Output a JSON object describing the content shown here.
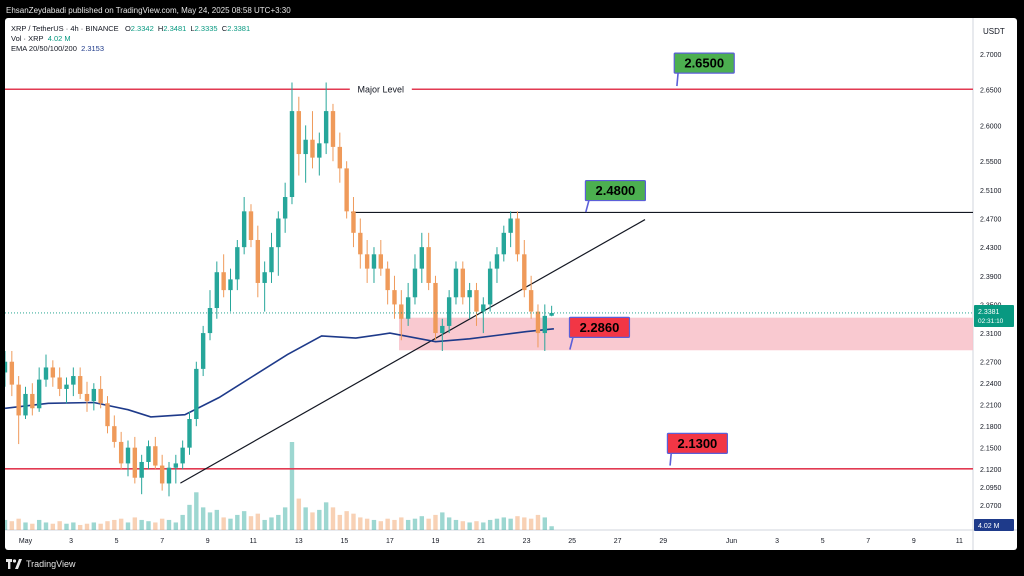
{
  "header": {
    "published_text": "EhsanZeydabadi published on TradingView.com, May 24, 2025 08:58 UTC+3:30"
  },
  "legend": {
    "symbol": "XRP / TetherUS · 4h · BINANCE",
    "o_label": "O",
    "o_value": "2.3342",
    "h_label": "H",
    "h_value": "2.3481",
    "l_label": "L",
    "l_value": "2.3335",
    "c_label": "C",
    "c_value": "2.3381",
    "vol_label": "Vol · XRP",
    "vol_value": "4.02 M",
    "ema_label": "EMA 20/50/100/200",
    "ema_value": "2.3153"
  },
  "footer": {
    "brand": "TradingView"
  },
  "colors": {
    "up": "#26a69a",
    "down": "#ef9a5a",
    "ema": "#1e3a8a",
    "level_line": "#e23a52",
    "zone_fill": "#f8c0c8",
    "green_label": "#4caf50",
    "red_label": "#f23645"
  },
  "chart_data": {
    "type": "candlestick",
    "symbol": "XRP/USDT",
    "timeframe": "4h",
    "currency_label": "USDT",
    "ylim": [
      2.035,
      2.75
    ],
    "y_ticks": [
      "2.7000",
      "2.6500",
      "2.6000",
      "2.5500",
      "2.5100",
      "2.4700",
      "2.4300",
      "2.3900",
      "2.3500",
      "2.3100",
      "2.2700",
      "2.2400",
      "2.2100",
      "2.1800",
      "2.1500",
      "2.1200",
      "2.0950",
      "2.0700"
    ],
    "x_ticks": [
      {
        "label": "May",
        "day": 1
      },
      {
        "label": "3",
        "day": 3
      },
      {
        "label": "5",
        "day": 5
      },
      {
        "label": "7",
        "day": 7
      },
      {
        "label": "9",
        "day": 9
      },
      {
        "label": "11",
        "day": 11
      },
      {
        "label": "13",
        "day": 13
      },
      {
        "label": "15",
        "day": 15
      },
      {
        "label": "17",
        "day": 17
      },
      {
        "label": "19",
        "day": 19
      },
      {
        "label": "21",
        "day": 21
      },
      {
        "label": "23",
        "day": 23
      },
      {
        "label": "25",
        "day": 25
      },
      {
        "label": "27",
        "day": 27
      },
      {
        "label": "29",
        "day": 29
      },
      {
        "label": "Jun",
        "day": 32
      },
      {
        "label": "3",
        "day": 34
      },
      {
        "label": "5",
        "day": 36
      },
      {
        "label": "7",
        "day": 38
      },
      {
        "label": "9",
        "day": 40
      },
      {
        "label": "11",
        "day": 42
      }
    ],
    "xlim_days": [
      0.1,
      42.6
    ],
    "current_price": "2.3381",
    "countdown": "02:31:10",
    "volume_badge": "4.02 M",
    "levels": [
      {
        "name": "major-level",
        "price": 2.6505,
        "label": "Major Level",
        "type": "red-line"
      },
      {
        "name": "resistance",
        "price": 2.4785,
        "day_start": 15.3,
        "type": "black-line"
      },
      {
        "name": "support-low",
        "price": 2.1205,
        "type": "red-line"
      }
    ],
    "zone": {
      "day_start": 17.4,
      "day_end": 42.6,
      "price_low": 2.286,
      "price_high": 2.3315
    },
    "trendline": {
      "day_start": 7.8,
      "price_start": 2.1005,
      "day_end": 28.2,
      "price_end": 2.4685
    },
    "callouts": [
      {
        "label": "2.6500",
        "color": "green",
        "day": 30.8,
        "price": 2.687,
        "arrow_day": 29.6,
        "arrow_price": 2.655
      },
      {
        "label": "2.4800",
        "color": "green",
        "day": 26.9,
        "price": 2.509,
        "arrow_day": 25.6,
        "arrow_price": 2.479
      },
      {
        "label": "2.2860",
        "color": "red",
        "day": 26.2,
        "price": 2.318,
        "arrow_day": 24.9,
        "arrow_price": 2.287
      },
      {
        "label": "2.1300",
        "color": "red",
        "day": 30.5,
        "price": 2.156,
        "arrow_day": 29.3,
        "arrow_price": 2.125
      }
    ],
    "ema_path": [
      [
        0.1,
        2.205
      ],
      [
        2,
        2.212
      ],
      [
        4,
        2.213
      ],
      [
        5.5,
        2.203
      ],
      [
        6.5,
        2.193
      ],
      [
        8,
        2.196
      ],
      [
        9.5,
        2.22
      ],
      [
        11,
        2.25
      ],
      [
        12.5,
        2.28
      ],
      [
        14,
        2.306
      ],
      [
        15.5,
        2.303
      ],
      [
        17,
        2.31
      ],
      [
        19,
        2.298
      ],
      [
        20.5,
        2.302
      ],
      [
        22,
        2.308
      ],
      [
        23,
        2.312
      ],
      [
        24.2,
        2.316
      ]
    ],
    "candles": [
      [
        0.1,
        2.255,
        2.285,
        2.235,
        2.27
      ],
      [
        0.4,
        2.27,
        2.285,
        2.222,
        2.238
      ],
      [
        0.7,
        2.238,
        2.25,
        2.155,
        2.195
      ],
      [
        1.0,
        2.195,
        2.235,
        2.19,
        2.225
      ],
      [
        1.3,
        2.225,
        2.24,
        2.195,
        2.205
      ],
      [
        1.6,
        2.205,
        2.262,
        2.2,
        2.245
      ],
      [
        1.9,
        2.245,
        2.28,
        2.235,
        2.262
      ],
      [
        2.2,
        2.262,
        2.272,
        2.235,
        2.248
      ],
      [
        2.5,
        2.248,
        2.262,
        2.222,
        2.232
      ],
      [
        2.8,
        2.232,
        2.248,
        2.212,
        2.238
      ],
      [
        3.1,
        2.238,
        2.262,
        2.222,
        2.25
      ],
      [
        3.4,
        2.25,
        2.262,
        2.218,
        2.225
      ],
      [
        3.7,
        2.225,
        2.242,
        2.2,
        2.215
      ],
      [
        4.0,
        2.215,
        2.24,
        2.202,
        2.232
      ],
      [
        4.3,
        2.232,
        2.25,
        2.205,
        2.212
      ],
      [
        4.6,
        2.212,
        2.222,
        2.17,
        2.18
      ],
      [
        4.9,
        2.18,
        2.195,
        2.15,
        2.158
      ],
      [
        5.2,
        2.158,
        2.172,
        2.12,
        2.128
      ],
      [
        5.5,
        2.128,
        2.16,
        2.11,
        2.15
      ],
      [
        5.8,
        2.15,
        2.165,
        2.1,
        2.108
      ],
      [
        6.1,
        2.108,
        2.14,
        2.085,
        2.13
      ],
      [
        6.4,
        2.13,
        2.16,
        2.12,
        2.152
      ],
      [
        6.7,
        2.152,
        2.165,
        2.12,
        2.125
      ],
      [
        7.0,
        2.125,
        2.14,
        2.09,
        2.1
      ],
      [
        7.3,
        2.1,
        2.13,
        2.082,
        2.122
      ],
      [
        7.6,
        2.122,
        2.14,
        2.1,
        2.128
      ],
      [
        7.9,
        2.128,
        2.16,
        2.12,
        2.15
      ],
      [
        8.2,
        2.15,
        2.2,
        2.14,
        2.19
      ],
      [
        8.5,
        2.19,
        2.27,
        2.18,
        2.26
      ],
      [
        8.8,
        2.26,
        2.32,
        2.25,
        2.31
      ],
      [
        9.1,
        2.31,
        2.37,
        2.3,
        2.345
      ],
      [
        9.4,
        2.345,
        2.41,
        2.33,
        2.395
      ],
      [
        9.7,
        2.395,
        2.42,
        2.36,
        2.37
      ],
      [
        10.0,
        2.37,
        2.4,
        2.34,
        2.385
      ],
      [
        10.3,
        2.385,
        2.44,
        2.37,
        2.43
      ],
      [
        10.6,
        2.43,
        2.5,
        2.42,
        2.48
      ],
      [
        10.9,
        2.48,
        2.49,
        2.43,
        2.44
      ],
      [
        11.2,
        2.44,
        2.46,
        2.36,
        2.38
      ],
      [
        11.5,
        2.38,
        2.41,
        2.34,
        2.395
      ],
      [
        11.8,
        2.395,
        2.45,
        2.38,
        2.43
      ],
      [
        12.1,
        2.43,
        2.48,
        2.39,
        2.47
      ],
      [
        12.4,
        2.47,
        2.52,
        2.45,
        2.5
      ],
      [
        12.7,
        2.5,
        2.66,
        2.49,
        2.62
      ],
      [
        13.0,
        2.62,
        2.64,
        2.53,
        2.56
      ],
      [
        13.3,
        2.56,
        2.6,
        2.52,
        2.58
      ],
      [
        13.6,
        2.58,
        2.62,
        2.54,
        2.555
      ],
      [
        13.9,
        2.555,
        2.59,
        2.53,
        2.575
      ],
      [
        14.2,
        2.575,
        2.66,
        2.56,
        2.62
      ],
      [
        14.5,
        2.62,
        2.63,
        2.55,
        2.57
      ],
      [
        14.8,
        2.57,
        2.59,
        2.52,
        2.54
      ],
      [
        15.1,
        2.54,
        2.55,
        2.47,
        2.48
      ],
      [
        15.4,
        2.48,
        2.5,
        2.43,
        2.45
      ],
      [
        15.7,
        2.45,
        2.47,
        2.4,
        2.42
      ],
      [
        16.0,
        2.42,
        2.44,
        2.38,
        2.4
      ],
      [
        16.3,
        2.4,
        2.43,
        2.38,
        2.42
      ],
      [
        16.6,
        2.42,
        2.44,
        2.39,
        2.4
      ],
      [
        16.9,
        2.4,
        2.41,
        2.35,
        2.37
      ],
      [
        17.2,
        2.37,
        2.39,
        2.33,
        2.35
      ],
      [
        17.5,
        2.35,
        2.37,
        2.3,
        2.33
      ],
      [
        17.8,
        2.33,
        2.38,
        2.32,
        2.36
      ],
      [
        18.1,
        2.36,
        2.42,
        2.35,
        2.4
      ],
      [
        18.4,
        2.4,
        2.45,
        2.38,
        2.43
      ],
      [
        18.7,
        2.43,
        2.45,
        2.37,
        2.38
      ],
      [
        19.0,
        2.38,
        2.39,
        2.3,
        2.31
      ],
      [
        19.3,
        2.31,
        2.33,
        2.285,
        2.32
      ],
      [
        19.6,
        2.32,
        2.37,
        2.31,
        2.36
      ],
      [
        19.9,
        2.36,
        2.41,
        2.35,
        2.4
      ],
      [
        20.2,
        2.4,
        2.41,
        2.35,
        2.36
      ],
      [
        20.5,
        2.36,
        2.38,
        2.33,
        2.37
      ],
      [
        20.8,
        2.37,
        2.38,
        2.32,
        2.34
      ],
      [
        21.1,
        2.34,
        2.36,
        2.31,
        2.35
      ],
      [
        21.4,
        2.35,
        2.41,
        2.34,
        2.4
      ],
      [
        21.7,
        2.4,
        2.43,
        2.38,
        2.42
      ],
      [
        22.0,
        2.42,
        2.46,
        2.41,
        2.45
      ],
      [
        22.3,
        2.45,
        2.48,
        2.43,
        2.47
      ],
      [
        22.6,
        2.47,
        2.48,
        2.41,
        2.42
      ],
      [
        22.9,
        2.42,
        2.44,
        2.36,
        2.37
      ],
      [
        23.2,
        2.37,
        2.39,
        2.33,
        2.34
      ],
      [
        23.5,
        2.34,
        2.35,
        2.29,
        2.31
      ],
      [
        23.8,
        2.31,
        2.35,
        2.285,
        2.334
      ],
      [
        24.1,
        2.3342,
        2.3481,
        2.3335,
        2.3381
      ]
    ],
    "volume": [
      [
        0.1,
        8
      ],
      [
        0.4,
        7
      ],
      [
        0.7,
        9
      ],
      [
        1.0,
        6
      ],
      [
        1.3,
        5
      ],
      [
        1.6,
        8
      ],
      [
        1.9,
        6
      ],
      [
        2.2,
        5
      ],
      [
        2.5,
        7
      ],
      [
        2.8,
        5
      ],
      [
        3.1,
        6
      ],
      [
        3.4,
        4
      ],
      [
        3.7,
        5
      ],
      [
        4.0,
        6
      ],
      [
        4.3,
        5
      ],
      [
        4.6,
        7
      ],
      [
        4.9,
        8
      ],
      [
        5.2,
        9
      ],
      [
        5.5,
        6
      ],
      [
        5.8,
        10
      ],
      [
        6.1,
        8
      ],
      [
        6.4,
        7
      ],
      [
        6.7,
        6
      ],
      [
        7.0,
        9
      ],
      [
        7.3,
        8
      ],
      [
        7.6,
        6
      ],
      [
        7.9,
        12
      ],
      [
        8.2,
        20
      ],
      [
        8.5,
        30
      ],
      [
        8.8,
        18
      ],
      [
        9.1,
        14
      ],
      [
        9.4,
        16
      ],
      [
        9.7,
        10
      ],
      [
        10.0,
        9
      ],
      [
        10.3,
        12
      ],
      [
        10.6,
        15
      ],
      [
        10.9,
        11
      ],
      [
        11.2,
        13
      ],
      [
        11.5,
        8
      ],
      [
        11.8,
        10
      ],
      [
        12.1,
        12
      ],
      [
        12.4,
        18
      ],
      [
        12.7,
        70
      ],
      [
        13.0,
        25
      ],
      [
        13.3,
        18
      ],
      [
        13.6,
        14
      ],
      [
        13.9,
        16
      ],
      [
        14.2,
        22
      ],
      [
        14.5,
        18
      ],
      [
        14.8,
        12
      ],
      [
        15.1,
        15
      ],
      [
        15.4,
        13
      ],
      [
        15.7,
        10
      ],
      [
        16.0,
        9
      ],
      [
        16.3,
        8
      ],
      [
        16.6,
        7
      ],
      [
        16.9,
        9
      ],
      [
        17.2,
        8
      ],
      [
        17.5,
        10
      ],
      [
        17.8,
        8
      ],
      [
        18.1,
        9
      ],
      [
        18.4,
        11
      ],
      [
        18.7,
        9
      ],
      [
        19.0,
        12
      ],
      [
        19.3,
        14
      ],
      [
        19.6,
        10
      ],
      [
        19.9,
        8
      ],
      [
        20.2,
        7
      ],
      [
        20.5,
        6
      ],
      [
        20.8,
        7
      ],
      [
        21.1,
        6
      ],
      [
        21.4,
        8
      ],
      [
        21.7,
        9
      ],
      [
        22.0,
        10
      ],
      [
        22.3,
        9
      ],
      [
        22.6,
        11
      ],
      [
        22.9,
        10
      ],
      [
        23.2,
        9
      ],
      [
        23.5,
        12
      ],
      [
        23.8,
        10
      ],
      [
        24.1,
        3
      ]
    ]
  }
}
